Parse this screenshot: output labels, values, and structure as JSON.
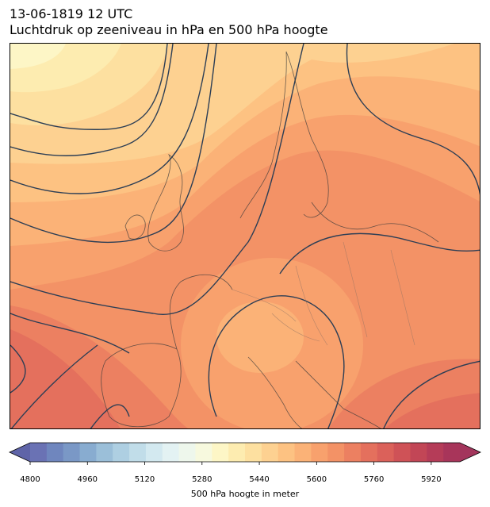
{
  "header": {
    "title_line1": "13-06-1819 12 UTC",
    "title_line2": "Luchtdruk op zeeniveau in hPa en 500 hPa hoogte"
  },
  "map": {
    "region": "Europe",
    "layers": [
      "500 hPa height (filled contours)",
      "sea-level pressure isobars (lines)",
      "coastlines",
      "country borders"
    ],
    "colors": {
      "isobar": "#2c3e55",
      "coastline": "#3a3a3a",
      "border": "#8a6f63"
    }
  },
  "colorbar": {
    "label": "500 hPa hoogte in meter",
    "min": 4800,
    "max": 6000,
    "step": 40,
    "ticks": [
      "4800",
      "4960",
      "5120",
      "5280",
      "5440",
      "5600",
      "5760",
      "5920"
    ],
    "extend": "both",
    "colors": [
      "#6a72b4",
      "#6f86be",
      "#7a98c6",
      "#88acd0",
      "#9bbfd9",
      "#aecfe2",
      "#c1dde9",
      "#d3e9f0",
      "#e3f2f3",
      "#eef7ec",
      "#f7f9de",
      "#fdf6c6",
      "#fdecb0",
      "#fde0a0",
      "#fdd191",
      "#fdc282",
      "#fbb277",
      "#f8a16d",
      "#f39266",
      "#ec8061",
      "#e4705d",
      "#db615a",
      "#cf5257",
      "#c24656",
      "#b53c58",
      "#a8355a"
    ],
    "under_color": "#5f64a8",
    "over_color": "#a3355c"
  }
}
